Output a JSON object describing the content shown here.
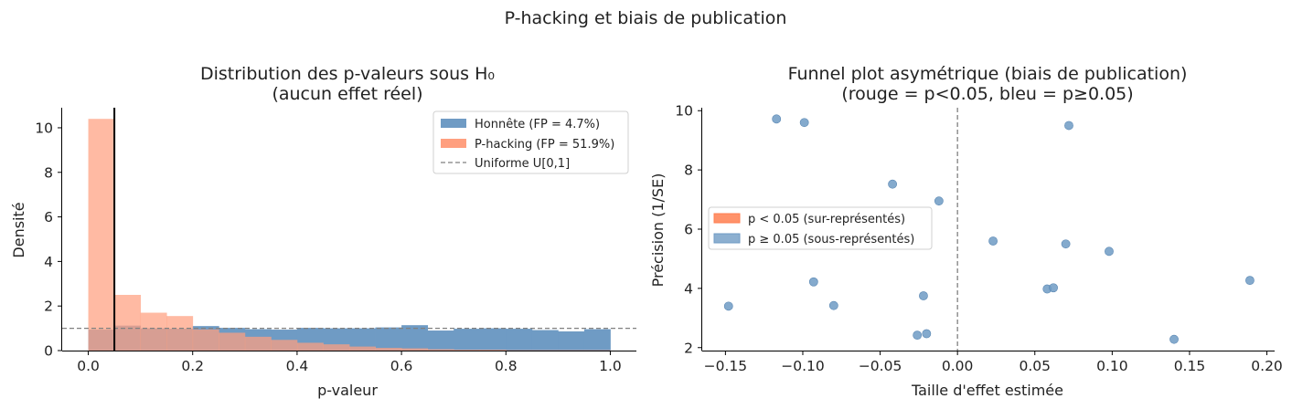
{
  "suptitle": "P-hacking et biais de publication",
  "colors": {
    "honest": "#6f9bc4",
    "phack": "#ff9f7f",
    "overlap": "#b07a6e",
    "blue_points": "#6f9bc4",
    "red_patch": "#ff7f50",
    "uniform_line": "#808080",
    "threshold_line": "#000000"
  },
  "chart_data": [
    {
      "type": "bar",
      "title_line1": "Distribution des p-valeurs sous H₀",
      "title_line2": "(aucun effet réel)",
      "xlabel": "p-valeur",
      "ylabel": "Densité",
      "xlim": [
        -0.05,
        1.05
      ],
      "ylim": [
        0,
        10.9
      ],
      "xticks": [
        0.0,
        0.2,
        0.4,
        0.6,
        0.8,
        1.0
      ],
      "xtick_labels": [
        "0.0",
        "0.2",
        "0.4",
        "0.6",
        "0.8",
        "1.0"
      ],
      "yticks": [
        0,
        2,
        4,
        6,
        8,
        10
      ],
      "ytick_labels": [
        "0",
        "2",
        "4",
        "6",
        "8",
        "10"
      ],
      "bin_edges": [
        0.0,
        0.05,
        0.1,
        0.15,
        0.2,
        0.25,
        0.3,
        0.35,
        0.4,
        0.45,
        0.5,
        0.55,
        0.6,
        0.65,
        0.7,
        0.75,
        0.8,
        0.85,
        0.9,
        0.95,
        1.0
      ],
      "series": [
        {
          "name": "Honnête (FP = 4.7%)",
          "values": [
            0.94,
            1.12,
            1.0,
            0.98,
            1.1,
            1.02,
            0.96,
            0.94,
            1.02,
            1.0,
            1.0,
            1.04,
            1.14,
            0.9,
            0.98,
            1.0,
            0.98,
            0.92,
            0.86,
            0.96
          ]
        },
        {
          "name": "P-hacking (FP = 51.9%)",
          "values": [
            10.4,
            2.5,
            1.7,
            1.55,
            0.95,
            0.8,
            0.62,
            0.48,
            0.35,
            0.28,
            0.18,
            0.12,
            0.1,
            0.06,
            0.04,
            0.04,
            0.02,
            0.02,
            0.02,
            0.02
          ]
        }
      ],
      "uniform_label": "Uniforme U[0,1]",
      "uniform_value": 1.0,
      "threshold": 0.05,
      "legend_position": "upper right"
    },
    {
      "type": "scatter",
      "title_line1": "Funnel plot asymétrique (biais de publication)",
      "title_line2": "(rouge = p<0.05, bleu = p≥0.05)",
      "xlabel": "Taille d'effet estimée",
      "ylabel": "Précision (1/SE)",
      "xlim": [
        -0.165,
        0.205
      ],
      "ylim": [
        1.9,
        10.1
      ],
      "xticks": [
        -0.15,
        -0.1,
        -0.05,
        0.0,
        0.05,
        0.1,
        0.15,
        0.2
      ],
      "xtick_labels": [
        "−0.15",
        "−0.10",
        "−0.05",
        "0.00",
        "0.05",
        "0.10",
        "0.15",
        "0.20"
      ],
      "yticks": [
        2,
        4,
        6,
        8,
        10
      ],
      "ytick_labels": [
        "2",
        "4",
        "6",
        "8",
        "10"
      ],
      "vline": 0.0,
      "points": [
        {
          "x": -0.117,
          "y": 9.72
        },
        {
          "x": -0.099,
          "y": 9.6
        },
        {
          "x": 0.072,
          "y": 9.5
        },
        {
          "x": -0.042,
          "y": 7.52
        },
        {
          "x": -0.012,
          "y": 6.95
        },
        {
          "x": 0.023,
          "y": 5.6
        },
        {
          "x": 0.07,
          "y": 5.5
        },
        {
          "x": 0.098,
          "y": 5.25
        },
        {
          "x": -0.093,
          "y": 4.22
        },
        {
          "x": 0.189,
          "y": 4.27
        },
        {
          "x": 0.058,
          "y": 3.98
        },
        {
          "x": 0.062,
          "y": 4.02
        },
        {
          "x": -0.022,
          "y": 3.75
        },
        {
          "x": -0.08,
          "y": 3.42
        },
        {
          "x": -0.148,
          "y": 3.4
        },
        {
          "x": -0.026,
          "y": 2.42
        },
        {
          "x": -0.02,
          "y": 2.47
        },
        {
          "x": 0.14,
          "y": 2.28
        }
      ],
      "legend": [
        {
          "label": "p < 0.05 (sur-représentés)"
        },
        {
          "label": "p ≥ 0.05 (sous-représentés)"
        }
      ],
      "legend_position": "center left"
    }
  ]
}
